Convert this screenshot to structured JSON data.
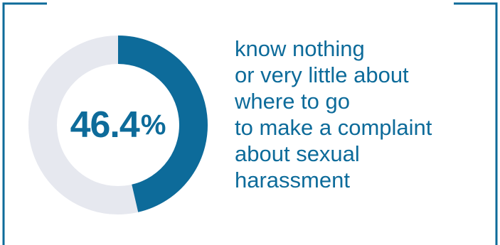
{
  "colors": {
    "accent": "#0d6b9a",
    "track": "#e6e8ef",
    "frame": "#0d6b9a",
    "background": "#ffffff"
  },
  "chart_data": {
    "type": "pie",
    "style": "donut",
    "values": [
      46.4,
      53.6
    ],
    "percent_label": "46.4",
    "percent_sign": "%",
    "annotation_lines": [
      "know nothing",
      "or very little about",
      "where to go",
      "to make a complaint",
      "about sexual",
      "harassment"
    ]
  }
}
